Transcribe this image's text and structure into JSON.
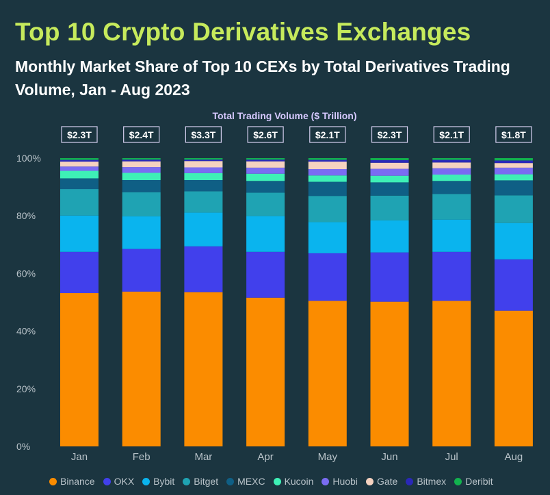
{
  "header": {
    "title": "Top 10 Crypto Derivatives Exchanges",
    "subtitle": "Monthly Market Share of Top 10 CEXs by Total Derivatives Trading Volume, Jan - Aug 2023"
  },
  "chart_data": {
    "type": "bar",
    "stacked": true,
    "categories": [
      "Jan",
      "Feb",
      "Mar",
      "Apr",
      "May",
      "Jun",
      "Jul",
      "Aug"
    ],
    "ylim": [
      0,
      100
    ],
    "yticks": [
      "0%",
      "20%",
      "40%",
      "60%",
      "80%",
      "100%"
    ],
    "grid": false,
    "legend_position": "bottom",
    "volume_title": "Total Trading Volume ($ Trillion)",
    "volume_labels": [
      "$2.3T",
      "$2.4T",
      "$3.3T",
      "$2.6T",
      "$2.1T",
      "$2.3T",
      "$2.1T",
      "$1.8T"
    ],
    "series": [
      {
        "name": "Binance",
        "color": "#fb8c00",
        "values": [
          53.2,
          53.7,
          53.5,
          51.6,
          50.5,
          50.2,
          50.5,
          47.1
        ]
      },
      {
        "name": "OKX",
        "color": "#4140ec",
        "values": [
          14.3,
          14.8,
          15.9,
          15.9,
          16.5,
          17.1,
          17.0,
          17.8
        ]
      },
      {
        "name": "Bybit",
        "color": "#0ab4ee",
        "values": [
          12.6,
          11.3,
          11.7,
          12.4,
          10.8,
          11.1,
          11.2,
          12.6
        ]
      },
      {
        "name": "Bitget",
        "color": "#1fa3b3",
        "values": [
          9.2,
          8.4,
          7.4,
          8.1,
          9.1,
          8.6,
          8.9,
          9.6
        ]
      },
      {
        "name": "MEXC",
        "color": "#0f5f85",
        "values": [
          3.7,
          4.2,
          3.9,
          4.1,
          4.9,
          4.6,
          4.5,
          5.2
        ]
      },
      {
        "name": "Kucoin",
        "color": "#3ef0b6",
        "values": [
          2.6,
          2.5,
          2.4,
          2.5,
          2.2,
          2.3,
          2.2,
          2.1
        ]
      },
      {
        "name": "Huobi",
        "color": "#7a6cf2",
        "values": [
          1.5,
          2.0,
          2.0,
          2.1,
          2.2,
          2.4,
          2.2,
          2.3
        ]
      },
      {
        "name": "Gate",
        "color": "#f5d2c0",
        "values": [
          1.7,
          2.0,
          2.2,
          2.2,
          2.6,
          2.1,
          2.0,
          1.6
        ]
      },
      {
        "name": "Bitmex",
        "color": "#2a28b8",
        "values": [
          0.6,
          0.6,
          0.5,
          0.6,
          0.6,
          0.9,
          0.9,
          0.9
        ]
      },
      {
        "name": "Deribit",
        "color": "#12b24e",
        "values": [
          0.6,
          0.5,
          0.5,
          0.5,
          0.6,
          0.7,
          0.6,
          0.8
        ]
      }
    ]
  }
}
